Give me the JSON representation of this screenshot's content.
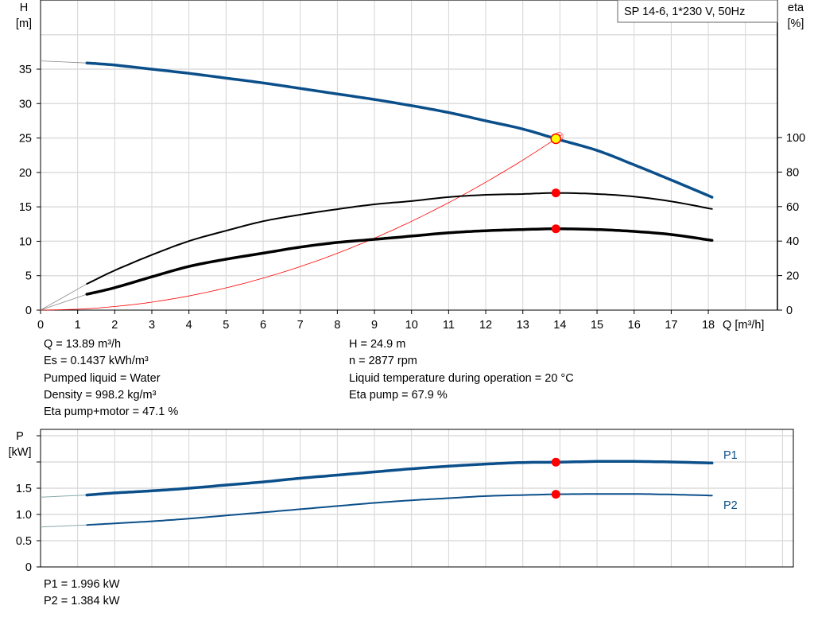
{
  "chart_data": [
    {
      "type": "line",
      "legend_box": "SP 14-6, 1*230 V, 50Hz",
      "xlabel": "Q [m³/h]",
      "ylabel_left": [
        "H",
        "[m]"
      ],
      "ylabel_right": [
        "eta",
        "[%]"
      ],
      "xlim": [
        0,
        19.8
      ],
      "ylim_left": [
        0,
        45
      ],
      "ylim_right": [
        0,
        180
      ],
      "x_ticks": [
        0,
        1,
        2,
        3,
        4,
        5,
        6,
        7,
        8,
        9,
        10,
        11,
        12,
        13,
        14,
        15,
        16,
        17,
        18
      ],
      "y_ticks_left": [
        0,
        5,
        10,
        15,
        20,
        25,
        30,
        35
      ],
      "y_ticks_right": [
        0,
        20,
        40,
        60,
        80,
        100
      ],
      "grid": true,
      "x": [
        0,
        1.25,
        2,
        3,
        4,
        5,
        6,
        7,
        8,
        9,
        10,
        11,
        12,
        13,
        13.89,
        15,
        16,
        17,
        18.1
      ],
      "series": [
        {
          "axis": "left",
          "color": "#0b4f8a",
          "values": [
            36.2,
            35.9,
            35.6,
            35.0,
            34.4,
            33.7,
            33.0,
            32.2,
            31.4,
            30.6,
            29.7,
            28.7,
            27.5,
            26.3,
            24.9,
            23.2,
            21.1,
            18.9,
            16.4
          ]
        },
        {
          "axis": "right",
          "color": "#000000",
          "values": [
            0,
            15.2,
            23,
            32,
            40,
            46,
            51.5,
            55.3,
            58.5,
            61.3,
            63.2,
            65.5,
            66.8,
            67.3,
            67.9,
            67.3,
            65.8,
            63,
            58.6
          ]
        },
        {
          "axis": "right",
          "color": "#000000",
          "values": [
            0,
            9.2,
            13,
            19.3,
            25.3,
            29.5,
            33,
            36.5,
            39.2,
            41,
            42.9,
            44.8,
            46,
            46.7,
            47.1,
            46.7,
            45.6,
            43.8,
            40.4
          ]
        }
      ],
      "system_curve": {
        "axis": "left",
        "color": "#ff0000",
        "x": [
          0,
          1,
          2,
          3,
          4,
          5,
          6,
          7,
          8,
          9,
          10,
          11,
          12,
          13,
          14.05
        ],
        "values": [
          0,
          0.13,
          0.52,
          1.16,
          2.06,
          3.23,
          4.65,
          6.32,
          8.26,
          10.45,
          12.9,
          15.61,
          18.58,
          21.8,
          25.46
        ]
      },
      "duty_point": {
        "Q": 13.89,
        "H": 24.9,
        "eta_pump": 67.9,
        "eta_total": 47.1,
        "marker_color": "#ffff00",
        "dot_color": "#ff0000"
      }
    },
    {
      "type": "line",
      "ylabel": [
        "P",
        "[kW]"
      ],
      "xlim": [
        0,
        20.2
      ],
      "ylim": [
        0,
        2.6
      ],
      "y_ticks": [
        0,
        0.5,
        1.0,
        1.5
      ],
      "y_tick_labels": [
        "0",
        "0.5",
        "1.0",
        "1.5"
      ],
      "grid": true,
      "x": [
        0,
        1.25,
        2,
        3,
        4,
        5,
        6,
        7,
        8,
        9,
        10,
        11,
        12,
        13,
        13.89,
        15,
        16,
        17,
        18.1
      ],
      "series": [
        {
          "name": "P1",
          "color": "#0b4f8a",
          "values": [
            1.33,
            1.37,
            1.41,
            1.45,
            1.5,
            1.56,
            1.62,
            1.69,
            1.75,
            1.81,
            1.87,
            1.92,
            1.96,
            1.99,
            1.996,
            2.01,
            2.01,
            2.0,
            1.98
          ]
        },
        {
          "name": "P2",
          "color": "#0b4f8a",
          "values": [
            0.76,
            0.8,
            0.83,
            0.87,
            0.92,
            0.98,
            1.04,
            1.1,
            1.16,
            1.22,
            1.27,
            1.31,
            1.35,
            1.37,
            1.384,
            1.39,
            1.39,
            1.38,
            1.36
          ]
        }
      ],
      "duty_point": {
        "Q": 13.89,
        "P1": 1.996,
        "P2": 1.384
      }
    }
  ],
  "info": {
    "left": [
      "Q = 13.89 m³/h",
      "Es = 0.1437 kWh/m³",
      "Pumped liquid = Water",
      "Density = 998.2 kg/m³",
      "Eta pump+motor = 47.1 %"
    ],
    "right": [
      "H = 24.9 m",
      "n = 2877 rpm",
      "Liquid temperature during operation = 20 °C",
      "Eta pump = 67.9 %"
    ],
    "power": [
      "P1 = 1.996 kW",
      "P2 = 1.384 kW"
    ]
  }
}
